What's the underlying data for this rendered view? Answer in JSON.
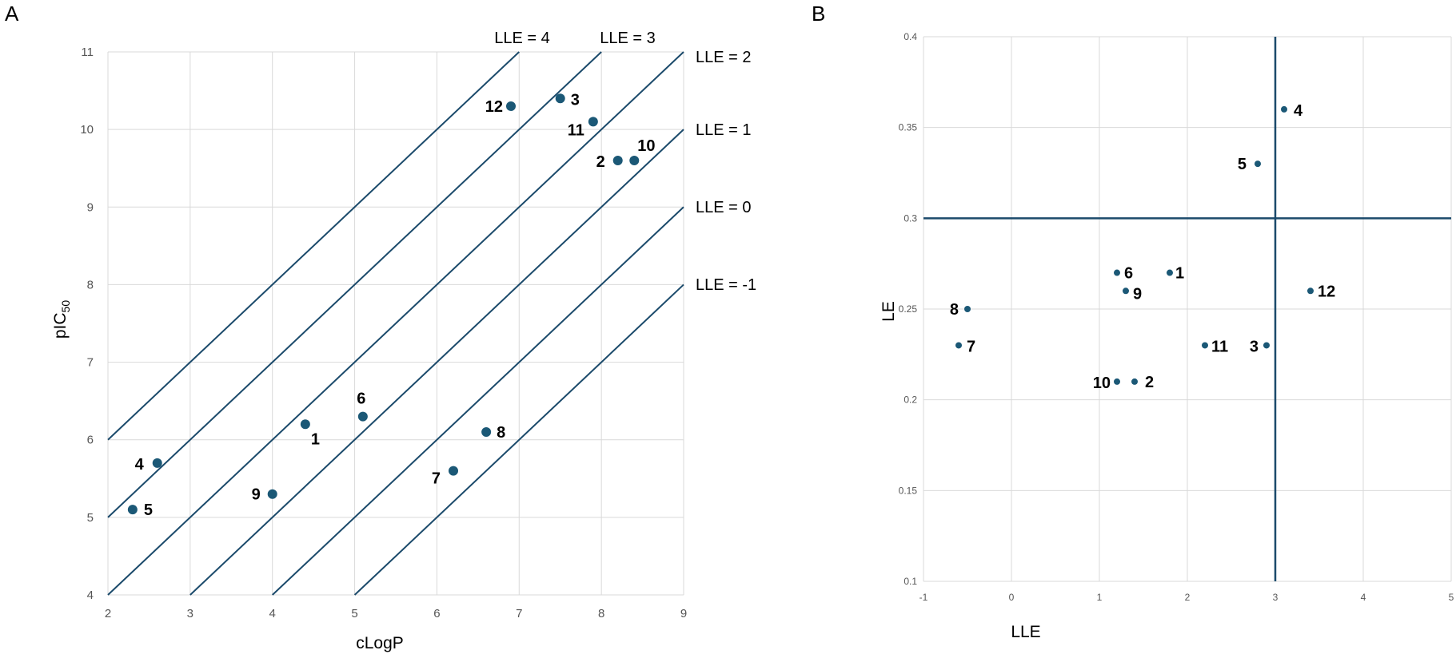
{
  "panel_a_letter": "A",
  "panel_b_letter": "B",
  "chart_data": [
    {
      "type": "scatter",
      "panel": "A",
      "xlabel": "cLogP",
      "ylabel_main": "pIC",
      "ylabel_sub": "50",
      "xlim": [
        2,
        9
      ],
      "ylim": [
        4,
        11
      ],
      "xticks": [
        "2",
        "3",
        "4",
        "5",
        "6",
        "7",
        "8",
        "9"
      ],
      "yticks": [
        "4",
        "5",
        "6",
        "7",
        "8",
        "9",
        "10",
        "11"
      ],
      "grid": true,
      "marker_color": "#1b5876",
      "line_color": "#1b4a6b",
      "points": [
        {
          "label": "1",
          "x": 4.4,
          "y": 6.2
        },
        {
          "label": "2",
          "x": 8.2,
          "y": 9.6
        },
        {
          "label": "3",
          "x": 7.5,
          "y": 10.4
        },
        {
          "label": "4",
          "x": 2.6,
          "y": 5.7
        },
        {
          "label": "5",
          "x": 2.3,
          "y": 5.1
        },
        {
          "label": "6",
          "x": 5.1,
          "y": 6.3
        },
        {
          "label": "7",
          "x": 6.2,
          "y": 5.6
        },
        {
          "label": "8",
          "x": 6.6,
          "y": 6.1
        },
        {
          "label": "9",
          "x": 4.0,
          "y": 5.3
        },
        {
          "label": "10",
          "x": 8.4,
          "y": 9.6
        },
        {
          "label": "11",
          "x": 7.9,
          "y": 10.1
        },
        {
          "label": "12",
          "x": 6.9,
          "y": 10.3
        }
      ],
      "lle_lines": [
        {
          "lle": 4,
          "label": "LLE = 4"
        },
        {
          "lle": 3,
          "label": "LLE = 3"
        },
        {
          "lle": 2,
          "label": "LLE = 2"
        },
        {
          "lle": 1,
          "label": "LLE = 1"
        },
        {
          "lle": 0,
          "label": "LLE = 0"
        },
        {
          "lle": -1,
          "label": "LLE = -1"
        }
      ]
    },
    {
      "type": "scatter",
      "panel": "B",
      "xlabel": "LLE",
      "ylabel": "LE",
      "xlim": [
        -1,
        5
      ],
      "ylim": [
        0.1,
        0.4
      ],
      "xticks": [
        "-1",
        "0",
        "1",
        "2",
        "3",
        "4",
        "5"
      ],
      "yticks": [
        "0.1",
        "0.15",
        "0.2",
        "0.25",
        "0.3",
        "0.35",
        "0.4"
      ],
      "grid": true,
      "marker_color": "#1b5876",
      "line_color": "#1b4a6b",
      "reference_lines": {
        "x": 3,
        "y": 0.3
      },
      "points": [
        {
          "label": "1",
          "x": 1.8,
          "y": 0.27
        },
        {
          "label": "2",
          "x": 1.4,
          "y": 0.21
        },
        {
          "label": "3",
          "x": 2.9,
          "y": 0.23
        },
        {
          "label": "4",
          "x": 3.1,
          "y": 0.36
        },
        {
          "label": "5",
          "x": 2.8,
          "y": 0.33
        },
        {
          "label": "6",
          "x": 1.2,
          "y": 0.27
        },
        {
          "label": "7",
          "x": -0.6,
          "y": 0.23
        },
        {
          "label": "8",
          "x": -0.5,
          "y": 0.25
        },
        {
          "label": "9",
          "x": 1.3,
          "y": 0.26
        },
        {
          "label": "10",
          "x": 1.2,
          "y": 0.21
        },
        {
          "label": "11",
          "x": 2.2,
          "y": 0.23
        },
        {
          "label": "12",
          "x": 3.4,
          "y": 0.26
        }
      ]
    }
  ]
}
